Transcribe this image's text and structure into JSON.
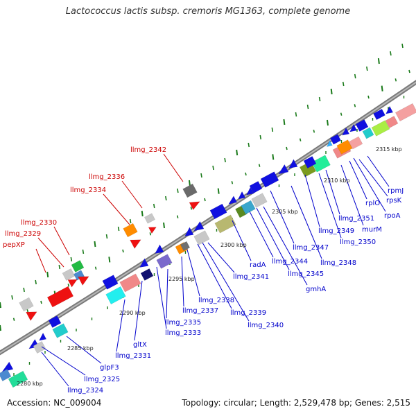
{
  "title": "Lactococcus lactis subsp. cremoris MG1363, complete genome",
  "footer": {
    "accession": "Accession: NC_009004",
    "summary": "Topology: circular; Length: 2,529,478 bp; Genes: 2,515"
  },
  "colors": {
    "forward_label": "#cc0000",
    "reverse_label": "#0000cc",
    "backbone": "#8c8c8c",
    "tick": "#1a7a1a"
  },
  "kbp_labels": [
    "2280 kbp",
    "2285 kbp",
    "2290 kbp",
    "2295 kbp",
    "2300 kbp",
    "2305 kbp",
    "2310 kbp",
    "2315 kbp"
  ],
  "forward_labels": [
    "llmg_2342",
    "llmg_2336",
    "llmg_2334",
    "llmg_2330",
    "llmg_2329",
    "pepXP"
  ],
  "reverse_labels": [
    "rpmJ",
    "rpsK",
    "rplO",
    "rpoA",
    "llmg_2351",
    "murM",
    "llmg_2349",
    "llmg_2350",
    "llmg_2347",
    "llmg_2348",
    "radA",
    "llmg_2344",
    "llmg_2341",
    "llmg_2345",
    "gmhA",
    "llmg_2338",
    "llmg_2339",
    "llmg_2337",
    "llmg_2340",
    "llmg_2335",
    "llmg_2333",
    "gltX",
    "llmg_2331",
    "glpF3",
    "llmg_2325",
    "llmg_2324"
  ]
}
